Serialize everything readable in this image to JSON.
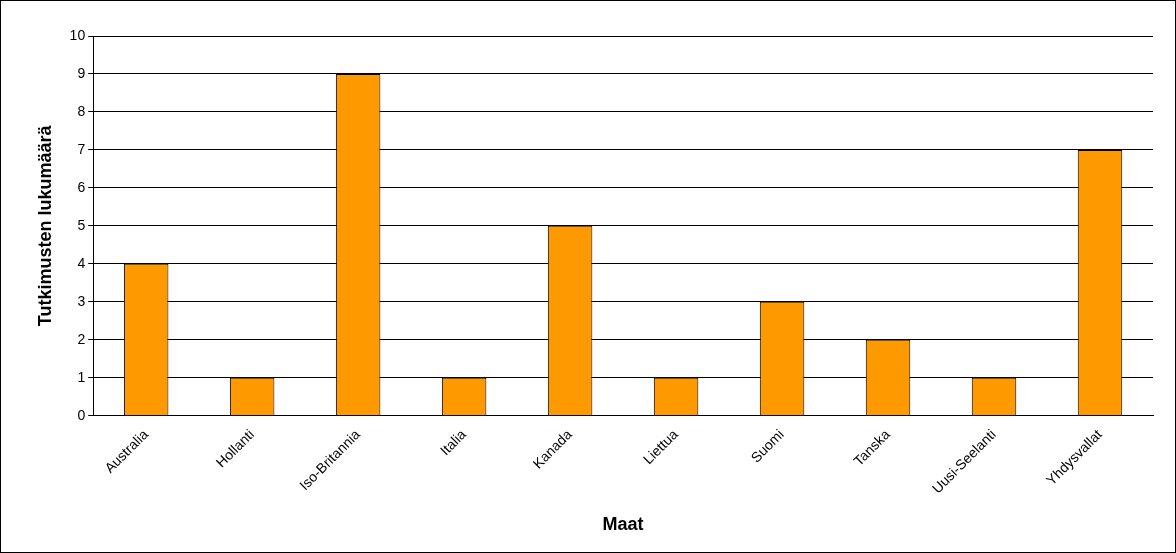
{
  "chart_data": {
    "type": "bar",
    "xlabel": "Maat",
    "ylabel": "Tutkimusten lukumäärä",
    "categories": [
      "Australia",
      "Hollanti",
      "Iso-Britannia",
      "Italia",
      "Kanada",
      "Liettua",
      "Suomi",
      "Tanska",
      "Uusi-Seelanti",
      "Yhdysvallat"
    ],
    "values": [
      4,
      1,
      9,
      1,
      5,
      1,
      3,
      2,
      1,
      7
    ],
    "color": "#ff9900",
    "ylim": [
      0,
      10
    ],
    "yticks": [
      0,
      1,
      2,
      3,
      4,
      5,
      6,
      7,
      8,
      9,
      10
    ],
    "grid": "y",
    "legend": false
  }
}
